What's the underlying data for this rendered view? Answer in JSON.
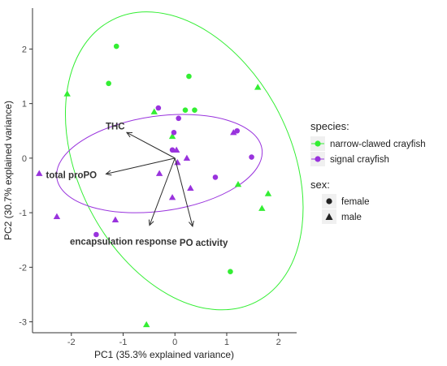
{
  "colors": {
    "narrow": "#33ee33",
    "signal": "#9933dd",
    "arrow": "#2b2b2b",
    "axis": "#333333"
  },
  "chart_data": {
    "type": "scatter",
    "title": "",
    "xlabel": "PC1 (35.3% explained variance)",
    "ylabel": "PC2 (30.7% explained variance)",
    "xlim": [
      -2.75,
      2.35
    ],
    "ylim": [
      -3.2,
      2.75
    ],
    "xticks": [
      "-2",
      "-1",
      "0",
      "1",
      "2"
    ],
    "xtick_values": [
      -2,
      -1,
      0,
      1,
      2
    ],
    "yticks": [
      "-3",
      "-2",
      "-1",
      "0",
      "1",
      "2"
    ],
    "ytick_values": [
      -3,
      -2,
      -1,
      0,
      1,
      2
    ],
    "grid": false,
    "legend_placement": "right",
    "series": [
      {
        "name": "narrow-clawed crayfish",
        "color": "#33ee33",
        "points": [
          {
            "x": -1.13,
            "y": 2.05,
            "sex": "female"
          },
          {
            "x": -1.28,
            "y": 1.37,
            "sex": "female"
          },
          {
            "x": 0.27,
            "y": 1.5,
            "sex": "female"
          },
          {
            "x": 0.2,
            "y": 0.88,
            "sex": "female"
          },
          {
            "x": 0.38,
            "y": 0.88,
            "sex": "female"
          },
          {
            "x": 1.07,
            "y": -2.08,
            "sex": "female"
          },
          {
            "x": -2.08,
            "y": 1.18,
            "sex": "male"
          },
          {
            "x": -0.4,
            "y": 0.85,
            "sex": "male"
          },
          {
            "x": -0.05,
            "y": 0.4,
            "sex": "male"
          },
          {
            "x": 1.6,
            "y": 1.3,
            "sex": "male"
          },
          {
            "x": 1.22,
            "y": -0.48,
            "sex": "male"
          },
          {
            "x": 1.8,
            "y": -0.65,
            "sex": "male"
          },
          {
            "x": 1.68,
            "y": -0.92,
            "sex": "male"
          },
          {
            "x": -0.55,
            "y": -3.05,
            "sex": "male"
          }
        ]
      },
      {
        "name": "signal crayfish",
        "color": "#9933dd",
        "points": [
          {
            "x": -0.32,
            "y": 0.92,
            "sex": "female"
          },
          {
            "x": 0.07,
            "y": 0.73,
            "sex": "female"
          },
          {
            "x": -0.02,
            "y": 0.47,
            "sex": "female"
          },
          {
            "x": -0.05,
            "y": 0.15,
            "sex": "female"
          },
          {
            "x": 1.2,
            "y": 0.5,
            "sex": "female"
          },
          {
            "x": 1.48,
            "y": 0.02,
            "sex": "female"
          },
          {
            "x": 0.78,
            "y": -0.35,
            "sex": "female"
          },
          {
            "x": -1.52,
            "y": -1.4,
            "sex": "female"
          },
          {
            "x": -2.62,
            "y": -0.28,
            "sex": "male"
          },
          {
            "x": -2.28,
            "y": -1.07,
            "sex": "male"
          },
          {
            "x": -1.15,
            "y": -1.13,
            "sex": "male"
          },
          {
            "x": -0.3,
            "y": -0.28,
            "sex": "male"
          },
          {
            "x": -0.05,
            "y": -0.72,
            "sex": "male"
          },
          {
            "x": 0.03,
            "y": 0.15,
            "sex": "male"
          },
          {
            "x": 0.05,
            "y": -0.08,
            "sex": "male"
          },
          {
            "x": 0.23,
            "y": 0.0,
            "sex": "male"
          },
          {
            "x": 0.3,
            "y": -0.55,
            "sex": "male"
          },
          {
            "x": 1.13,
            "y": 0.47,
            "sex": "male"
          }
        ]
      }
    ],
    "ellipses": [
      {
        "series": "narrow-clawed crayfish",
        "cx": 0.18,
        "cy": -0.05,
        "rx": 2.05,
        "ry": 2.9,
        "angle_deg": 27
      },
      {
        "series": "signal crayfish",
        "cx": -0.3,
        "cy": -0.1,
        "rx": 2.0,
        "ry": 0.87,
        "angle_deg": 8
      }
    ],
    "loadings": {
      "origin": [
        0,
        0
      ],
      "vectors": [
        {
          "label": "THC",
          "x": -0.93,
          "y": 0.47
        },
        {
          "label": "total  proPO",
          "x": -1.33,
          "y": -0.29
        },
        {
          "label": "encapsulation response",
          "x": -0.49,
          "y": -1.23
        },
        {
          "label": "PO activity",
          "x": 0.34,
          "y": -1.25
        }
      ]
    }
  },
  "legend": {
    "species_title": "species:",
    "species": [
      {
        "label": "narrow-clawed crayfish",
        "color": "#33ee33"
      },
      {
        "label": "signal crayfish",
        "color": "#9933dd"
      }
    ],
    "sex_title": "sex:",
    "sex": [
      {
        "label": "female",
        "shape": "circle"
      },
      {
        "label": "male",
        "shape": "triangle"
      }
    ]
  }
}
